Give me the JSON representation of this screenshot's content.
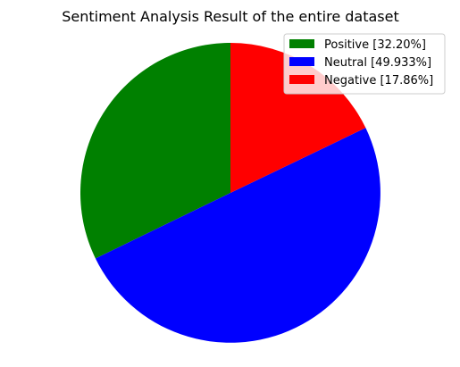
{
  "chart_data": {
    "type": "pie",
    "title": "Sentiment Analysis Result of the entire dataset",
    "start_angle_deg": 90,
    "direction": "counterclockwise",
    "legend_position": "upper-right",
    "slices": [
      {
        "label": "Positive [32.20%]",
        "value": 32.2,
        "color": "#008000"
      },
      {
        "label": "Neutral [49.933%]",
        "value": 49.933,
        "color": "#0000ff"
      },
      {
        "label": "Negative [17.86%]",
        "value": 17.86,
        "color": "#ff0000"
      }
    ]
  }
}
